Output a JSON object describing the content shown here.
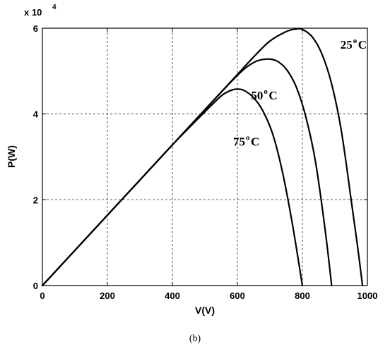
{
  "chart_data": {
    "type": "line",
    "xlabel": "V(V)",
    "ylabel": "P(W)",
    "y_multiplier": {
      "base": "x 10",
      "exponent": "4"
    },
    "xlim": [
      0,
      1000
    ],
    "ylim": [
      0,
      6
    ],
    "x_ticks": [
      "0",
      "200",
      "400",
      "600",
      "800",
      "1000"
    ],
    "y_ticks": [
      "0",
      "2",
      "4",
      "6"
    ],
    "grid": true,
    "caption": "(b)",
    "series": [
      {
        "name": "25°C",
        "label": {
          "main": "25",
          "sup": "o",
          "unit": "C"
        },
        "x": [
          0,
          100,
          200,
          300,
          400,
          500,
          600,
          650,
          700,
          750,
          780,
          800,
          830,
          860,
          890,
          920,
          950,
          970,
          985
        ],
        "y": [
          0,
          0.82,
          1.64,
          2.46,
          3.28,
          4.1,
          4.92,
          5.33,
          5.7,
          5.92,
          5.98,
          5.97,
          5.8,
          5.4,
          4.7,
          3.6,
          2.0,
          0.9,
          0
        ]
      },
      {
        "name": "50°C",
        "label": {
          "main": "50",
          "sup": "o",
          "unit": "C"
        },
        "x": [
          0,
          100,
          200,
          300,
          400,
          500,
          600,
          650,
          690,
          720,
          750,
          780,
          810,
          840,
          870,
          890
        ],
        "y": [
          0,
          0.82,
          1.64,
          2.46,
          3.28,
          4.1,
          4.9,
          5.2,
          5.28,
          5.24,
          5.05,
          4.65,
          3.95,
          2.9,
          1.3,
          0
        ]
      },
      {
        "name": "75°C",
        "label": {
          "main": "75",
          "sup": "o",
          "unit": "C"
        },
        "x": [
          0,
          100,
          200,
          300,
          400,
          500,
          550,
          580,
          600,
          620,
          650,
          680,
          710,
          740,
          770,
          800
        ],
        "y": [
          0,
          0.82,
          1.64,
          2.46,
          3.28,
          4.05,
          4.42,
          4.55,
          4.58,
          4.55,
          4.38,
          4.05,
          3.5,
          2.6,
          1.4,
          0
        ]
      }
    ]
  }
}
